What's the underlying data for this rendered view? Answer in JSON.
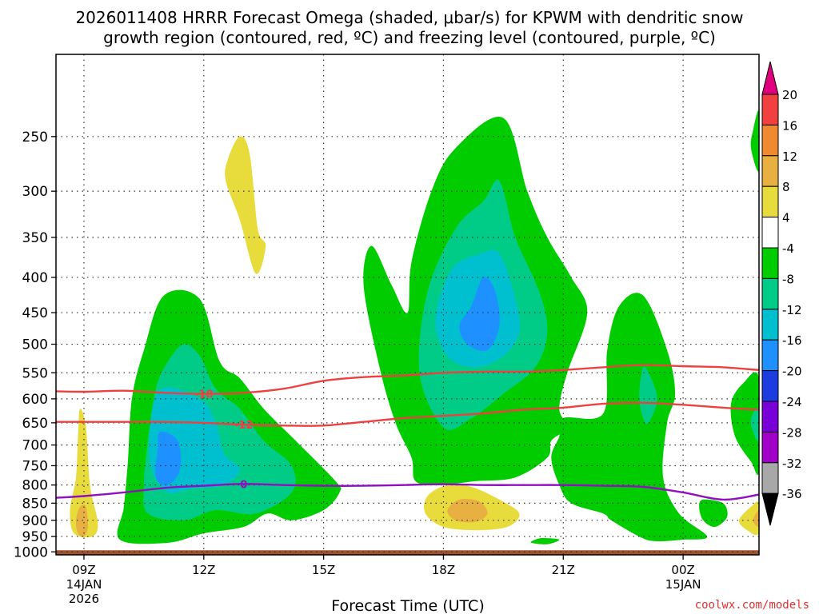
{
  "chart_data": {
    "type": "heatmap",
    "title_line1": "2026011408 HRRR Forecast Omega (shaded, μbar/s) for KPWM with dendritic snow",
    "title_line2": "growth region (contoured, red, ºC) and freezing level (contoured, purple, ºC)",
    "xlabel": "Forecast Time (UTC)",
    "ylabel": "",
    "x_ticks": [
      {
        "label": "09Z",
        "date": "14JAN",
        "year": "2026",
        "hour": 0
      },
      {
        "label": "12Z",
        "hour": 3
      },
      {
        "label": "15Z",
        "hour": 6
      },
      {
        "label": "18Z",
        "hour": 9
      },
      {
        "label": "21Z",
        "hour": 12
      },
      {
        "label": "00Z",
        "date": "15JAN",
        "hour": 15
      }
    ],
    "y_ticks": [
      250,
      300,
      350,
      400,
      450,
      500,
      550,
      600,
      650,
      700,
      750,
      800,
      850,
      900,
      950,
      1000
    ],
    "xlim_hours": [
      -0.7,
      16.9
    ],
    "ylim_hpa": [
      1010,
      190
    ],
    "colorbar": {
      "labels": [
        "20",
        "16",
        "12",
        "8",
        "4",
        "-4",
        "-8",
        "-12",
        "-16",
        "-20",
        "-24",
        "-28",
        "-32",
        "-36"
      ],
      "colors": [
        "#e0007d",
        "#f04040",
        "#f08a30",
        "#e8b040",
        "#e8dc3c",
        "#ffffff",
        "#00cc00",
        "#00cc88",
        "#00c0d0",
        "#1e90ff",
        "#1c3ce0",
        "#7a00d8",
        "#a000c8",
        "#a8a8a8",
        "#000000"
      ]
    },
    "shading": [
      {
        "name": "yellow-a",
        "color": "#e8dc3c",
        "pts": [
          [
            -0.1,
            620
          ],
          [
            0.05,
            660
          ],
          [
            0.15,
            800
          ],
          [
            0.35,
            910
          ],
          [
            0.2,
            950
          ],
          [
            -0.25,
            940
          ],
          [
            -0.35,
            870
          ],
          [
            -0.2,
            780
          ],
          [
            -0.15,
            680
          ]
        ]
      },
      {
        "name": "orange-a",
        "color": "#e8b040",
        "pts": [
          [
            -0.1,
            860
          ],
          [
            0.05,
            860
          ],
          [
            0.1,
            920
          ],
          [
            0.0,
            950
          ],
          [
            -0.15,
            940
          ],
          [
            -0.2,
            900
          ]
        ]
      },
      {
        "name": "yellow-b",
        "color": "#e8dc3c",
        "pts": [
          [
            3.9,
            250
          ],
          [
            4.15,
            265
          ],
          [
            4.35,
            340
          ],
          [
            4.55,
            360
          ],
          [
            4.3,
            395
          ],
          [
            3.9,
            330
          ],
          [
            3.55,
            290
          ],
          [
            3.6,
            270
          ]
        ]
      },
      {
        "name": "green-main-left",
        "color": "#00cc00",
        "pts": [
          [
            2.0,
            425
          ],
          [
            2.9,
            430
          ],
          [
            3.4,
            530
          ],
          [
            3.9,
            560
          ],
          [
            4.5,
            620
          ],
          [
            5.3,
            690
          ],
          [
            6.3,
            790
          ],
          [
            6.4,
            820
          ],
          [
            6.0,
            870
          ],
          [
            5.2,
            900
          ],
          [
            4.6,
            880
          ],
          [
            4.0,
            920
          ],
          [
            3.0,
            940
          ],
          [
            2.1,
            970
          ],
          [
            0.9,
            960
          ],
          [
            1.0,
            860
          ],
          [
            1.1,
            740
          ],
          [
            1.2,
            600
          ],
          [
            1.5,
            510
          ]
        ]
      },
      {
        "name": "teal-main-left",
        "color": "#00cc88",
        "pts": [
          [
            2.5,
            500
          ],
          [
            2.9,
            520
          ],
          [
            3.3,
            580
          ],
          [
            3.9,
            620
          ],
          [
            4.5,
            690
          ],
          [
            5.2,
            750
          ],
          [
            5.2,
            820
          ],
          [
            4.3,
            880
          ],
          [
            3.3,
            870
          ],
          [
            2.5,
            900
          ],
          [
            1.6,
            880
          ],
          [
            1.5,
            800
          ],
          [
            1.6,
            690
          ],
          [
            1.8,
            580
          ],
          [
            2.1,
            530
          ]
        ]
      },
      {
        "name": "cyan-main-left",
        "color": "#00c0d0",
        "pts": [
          [
            1.95,
            580
          ],
          [
            2.9,
            600
          ],
          [
            3.3,
            650
          ],
          [
            3.5,
            720
          ],
          [
            3.9,
            760
          ],
          [
            3.5,
            800
          ],
          [
            2.7,
            810
          ],
          [
            2.1,
            820
          ],
          [
            1.7,
            760
          ],
          [
            1.65,
            660
          ]
        ]
      },
      {
        "name": "blue-main-left",
        "color": "#1e90ff",
        "pts": [
          [
            1.9,
            670
          ],
          [
            2.35,
            690
          ],
          [
            2.4,
            760
          ],
          [
            2.1,
            800
          ],
          [
            1.8,
            780
          ],
          [
            1.85,
            710
          ]
        ]
      },
      {
        "name": "green-mid",
        "color": "#00cc00",
        "pts": [
          [
            10.5,
            235
          ],
          [
            11.1,
            300
          ],
          [
            11.6,
            350
          ],
          [
            12.2,
            400
          ],
          [
            12.6,
            450
          ],
          [
            12.1,
            550
          ],
          [
            11.9,
            620
          ],
          [
            12.1,
            660
          ],
          [
            11.7,
            690
          ],
          [
            11.6,
            730
          ],
          [
            10.8,
            780
          ],
          [
            9.8,
            790
          ],
          [
            8.9,
            800
          ],
          [
            8.3,
            790
          ],
          [
            8.2,
            730
          ],
          [
            7.8,
            650
          ],
          [
            7.4,
            540
          ],
          [
            7.0,
            410
          ],
          [
            7.2,
            360
          ],
          [
            7.7,
            410
          ],
          [
            8.1,
            450
          ],
          [
            8.2,
            380
          ],
          [
            8.7,
            300
          ],
          [
            9.3,
            260
          ]
        ]
      },
      {
        "name": "teal-mid",
        "color": "#00cc88",
        "pts": [
          [
            10.4,
            290
          ],
          [
            10.8,
            350
          ],
          [
            11.4,
            420
          ],
          [
            11.6,
            480
          ],
          [
            11.3,
            540
          ],
          [
            10.5,
            590
          ],
          [
            9.7,
            640
          ],
          [
            9.0,
            660
          ],
          [
            8.4,
            550
          ],
          [
            8.6,
            420
          ],
          [
            9.3,
            340
          ],
          [
            10.0,
            310
          ]
        ]
      },
      {
        "name": "cyan-mid",
        "color": "#00c0d0",
        "pts": [
          [
            10.4,
            370
          ],
          [
            10.8,
            430
          ],
          [
            10.9,
            480
          ],
          [
            10.5,
            520
          ],
          [
            9.8,
            540
          ],
          [
            9.1,
            520
          ],
          [
            8.8,
            460
          ],
          [
            9.2,
            390
          ],
          [
            9.9,
            370
          ]
        ]
      },
      {
        "name": "blue-mid",
        "color": "#1e90ff",
        "pts": [
          [
            10.0,
            400
          ],
          [
            10.3,
            420
          ],
          [
            10.4,
            470
          ],
          [
            10.1,
            510
          ],
          [
            9.6,
            500
          ],
          [
            9.4,
            470
          ],
          [
            9.7,
            440
          ]
        ]
      },
      {
        "name": "green-right",
        "color": "#00cc00",
        "pts": [
          [
            12.0,
            640
          ],
          [
            13.0,
            630
          ],
          [
            13.1,
            510
          ],
          [
            13.4,
            440
          ],
          [
            14.0,
            425
          ],
          [
            14.6,
            510
          ],
          [
            14.8,
            590
          ],
          [
            14.6,
            650
          ],
          [
            14.5,
            780
          ],
          [
            14.9,
            880
          ],
          [
            15.6,
            950
          ],
          [
            15.0,
            960
          ],
          [
            14.3,
            965
          ],
          [
            13.9,
            950
          ],
          [
            13.2,
            900
          ],
          [
            13.0,
            880
          ],
          [
            12.2,
            850
          ],
          [
            11.9,
            800
          ],
          [
            11.7,
            730
          ],
          [
            11.9,
            680
          ]
        ]
      },
      {
        "name": "teal-right",
        "color": "#00cc88",
        "pts": [
          [
            14.0,
            540
          ],
          [
            14.2,
            560
          ],
          [
            14.35,
            600
          ],
          [
            14.2,
            640
          ],
          [
            14.05,
            650
          ],
          [
            13.9,
            600
          ]
        ]
      },
      {
        "name": "green-far-right-a",
        "color": "#00cc00",
        "pts": [
          [
            16.9,
            560
          ],
          [
            16.9,
            760
          ],
          [
            16.7,
            740
          ],
          [
            16.3,
            680
          ],
          [
            16.2,
            610
          ],
          [
            16.5,
            570
          ]
        ]
      },
      {
        "name": "teal-far-right",
        "color": "#00cc88",
        "pts": [
          [
            16.9,
            620
          ],
          [
            16.9,
            690
          ],
          [
            16.75,
            670
          ],
          [
            16.7,
            640
          ]
        ]
      },
      {
        "name": "green-far-right-top",
        "color": "#00cc00",
        "pts": [
          [
            16.9,
            230
          ],
          [
            16.9,
            280
          ],
          [
            16.7,
            260
          ],
          [
            16.75,
            245
          ]
        ]
      },
      {
        "name": "green-small-a",
        "color": "#00cc00",
        "pts": [
          [
            15.5,
            840
          ],
          [
            16.0,
            850
          ],
          [
            16.1,
            890
          ],
          [
            15.8,
            920
          ],
          [
            15.5,
            900
          ],
          [
            15.4,
            860
          ]
        ]
      },
      {
        "name": "green-small-b",
        "color": "#00cc00",
        "pts": [
          [
            11.5,
            955
          ],
          [
            11.9,
            960
          ],
          [
            11.6,
            975
          ],
          [
            11.2,
            970
          ],
          [
            11.3,
            960
          ]
        ]
      },
      {
        "name": "yellow-mid",
        "color": "#e8dc3c",
        "pts": [
          [
            9.1,
            800
          ],
          [
            9.7,
            805
          ],
          [
            10.4,
            840
          ],
          [
            10.9,
            880
          ],
          [
            10.6,
            920
          ],
          [
            9.8,
            930
          ],
          [
            9.0,
            920
          ],
          [
            8.55,
            880
          ],
          [
            8.6,
            830
          ]
        ]
      },
      {
        "name": "orange-mid",
        "color": "#e8b040",
        "pts": [
          [
            9.4,
            840
          ],
          [
            9.9,
            845
          ],
          [
            10.1,
            880
          ],
          [
            9.8,
            905
          ],
          [
            9.3,
            900
          ],
          [
            9.1,
            870
          ]
        ]
      },
      {
        "name": "yellow-right",
        "color": "#e8dc3c",
        "pts": [
          [
            16.9,
            850
          ],
          [
            16.9,
            940
          ],
          [
            16.6,
            930
          ],
          [
            16.4,
            900
          ],
          [
            16.7,
            860
          ]
        ]
      },
      {
        "name": "orange-right",
        "color": "#e8b040",
        "pts": [
          [
            16.9,
            870
          ],
          [
            16.9,
            920
          ],
          [
            16.75,
            900
          ]
        ]
      }
    ],
    "contours": [
      {
        "name": "dgz-minus18",
        "label": "-18",
        "color": "#ee4040",
        "pts": [
          [
            -0.7,
            585
          ],
          [
            0.0,
            586
          ],
          [
            1.0,
            584
          ],
          [
            2.0,
            588
          ],
          [
            3.0,
            590
          ],
          [
            4.0,
            588
          ],
          [
            5.0,
            580
          ],
          [
            6.0,
            565
          ],
          [
            7.0,
            558
          ],
          [
            8.0,
            555
          ],
          [
            9.0,
            550
          ],
          [
            10.0,
            548
          ],
          [
            11.0,
            548
          ],
          [
            12.0,
            545
          ],
          [
            13.0,
            540
          ],
          [
            14.0,
            536
          ],
          [
            15.0,
            538
          ],
          [
            16.0,
            540
          ],
          [
            16.9,
            545
          ]
        ],
        "label_at": [
          3.0,
          590
        ]
      },
      {
        "name": "dgz-minus12",
        "label": "-12",
        "color": "#ee4040",
        "pts": [
          [
            -0.7,
            648
          ],
          [
            0.0,
            648
          ],
          [
            1.0,
            648
          ],
          [
            2.0,
            648
          ],
          [
            3.0,
            650
          ],
          [
            4.0,
            654
          ],
          [
            5.0,
            656
          ],
          [
            6.0,
            656
          ],
          [
            7.0,
            648
          ],
          [
            8.0,
            640
          ],
          [
            9.0,
            635
          ],
          [
            10.0,
            630
          ],
          [
            11.0,
            622
          ],
          [
            12.0,
            618
          ],
          [
            13.0,
            610
          ],
          [
            14.0,
            608
          ],
          [
            15.0,
            612
          ],
          [
            16.0,
            618
          ],
          [
            16.9,
            622
          ]
        ],
        "label_at": [
          4.0,
          654
        ]
      },
      {
        "name": "freezing-level-0",
        "label": "0",
        "color": "#9010c0",
        "pts": [
          [
            -0.7,
            835
          ],
          [
            0.0,
            830
          ],
          [
            1.0,
            820
          ],
          [
            2.0,
            808
          ],
          [
            3.0,
            802
          ],
          [
            4.0,
            797
          ],
          [
            5.0,
            800
          ],
          [
            6.0,
            802
          ],
          [
            7.0,
            802
          ],
          [
            8.0,
            800
          ],
          [
            9.0,
            798
          ],
          [
            10.0,
            800
          ],
          [
            11.0,
            800
          ],
          [
            12.0,
            800
          ],
          [
            13.0,
            802
          ],
          [
            14.0,
            805
          ],
          [
            15.0,
            820
          ],
          [
            16.0,
            840
          ],
          [
            16.9,
            826
          ]
        ],
        "label_at": [
          4.0,
          797
        ]
      }
    ],
    "ground_hpa": 1000,
    "credit": "coolwx.com/models"
  }
}
